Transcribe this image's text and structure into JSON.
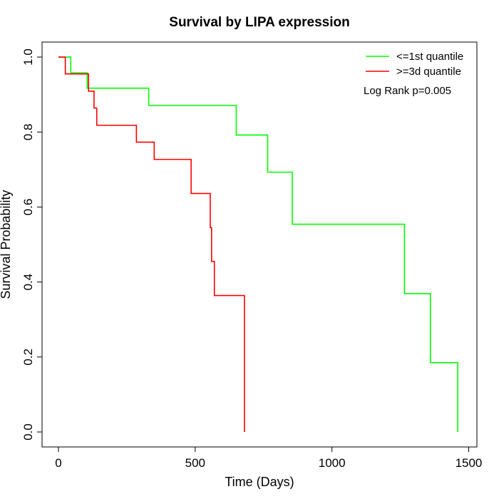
{
  "chart_data": {
    "type": "line",
    "subtype": "kaplan-meier-step",
    "title": "Survival by LIPA expression",
    "xlabel": "Time (Days)",
    "ylabel": "Survival Probability",
    "xlim": [
      -60,
      1530
    ],
    "ylim": [
      -0.04,
      1.04
    ],
    "xticks": [
      0,
      500,
      1000,
      1500
    ],
    "yticks": [
      0.0,
      0.2,
      0.4,
      0.6,
      0.8,
      1.0
    ],
    "xtick_labels": [
      "0",
      "500",
      "1000",
      "1500"
    ],
    "ytick_labels": [
      "0.0",
      "0.2",
      "0.4",
      "0.6",
      "0.8",
      "1.0"
    ],
    "grid": false,
    "legend_position": "top-right",
    "annotation": "Log Rank p=0.005",
    "series": [
      {
        "name": "<=1st quantile",
        "color": "#00ff00",
        "x": [
          0,
          45,
          105,
          330,
          650,
          765,
          855,
          1265,
          1360,
          1460
        ],
        "y": [
          1.0,
          0.958,
          0.917,
          0.871,
          0.792,
          0.693,
          0.554,
          0.369,
          0.185,
          0.0
        ]
      },
      {
        "name": ">=3d quantile",
        "color": "#ff0000",
        "x": [
          0,
          25,
          110,
          130,
          140,
          285,
          350,
          485,
          555,
          560,
          570,
          680
        ],
        "y": [
          1.0,
          0.955,
          0.909,
          0.864,
          0.818,
          0.773,
          0.727,
          0.636,
          0.545,
          0.455,
          0.364,
          0.0
        ]
      }
    ]
  }
}
